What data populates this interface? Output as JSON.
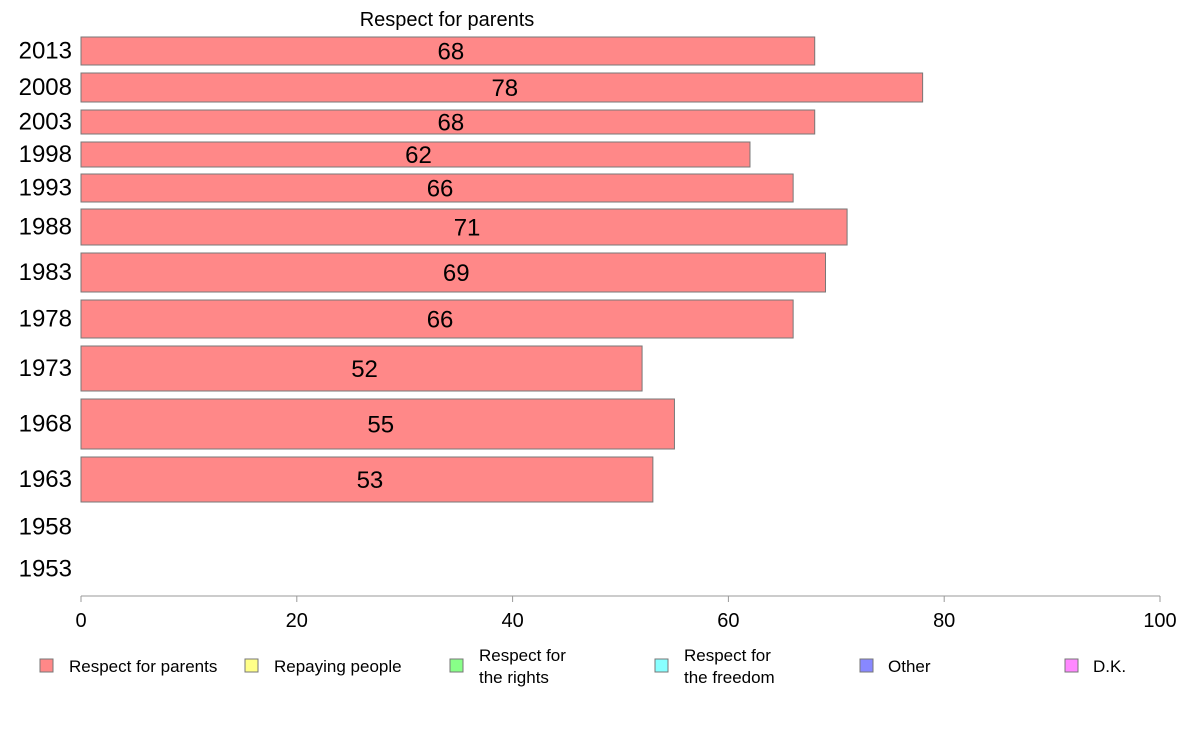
{
  "chart_data": {
    "type": "bar",
    "orientation": "horizontal",
    "title": "Respect for parents",
    "series_name": "Respect for parents",
    "categories": [
      "2013",
      "2008",
      "2003",
      "1998",
      "1993",
      "1988",
      "1983",
      "1978",
      "1973",
      "1968",
      "1963",
      "1958",
      "1953"
    ],
    "values": [
      68,
      78,
      68,
      62,
      66,
      71,
      69,
      66,
      52,
      55,
      53,
      null,
      null
    ],
    "data_labels": [
      "68",
      "78",
      "68",
      "62",
      "66",
      "71",
      "69",
      "66",
      "52",
      "55",
      "53",
      "",
      ""
    ],
    "xlim": [
      0,
      100
    ],
    "xticks": [
      "0",
      "20",
      "40",
      "60",
      "80",
      "100"
    ],
    "grid": false,
    "legend_position": "bottom",
    "legend": [
      {
        "label": "Respect for parents",
        "color": "#ff8888"
      },
      {
        "label": "Repaying people",
        "color": "#ffff88"
      },
      {
        "label": "Respect for the rights",
        "line1": "Respect for",
        "line2": "the rights",
        "color": "#88ff88"
      },
      {
        "label": "Respect for the freedom",
        "line1": "Respect for",
        "line2": "the freedom",
        "color": "#88ffff"
      },
      {
        "label": "Other",
        "color": "#8888ff"
      },
      {
        "label": "D.K.",
        "color": "#ff88ff"
      }
    ]
  }
}
